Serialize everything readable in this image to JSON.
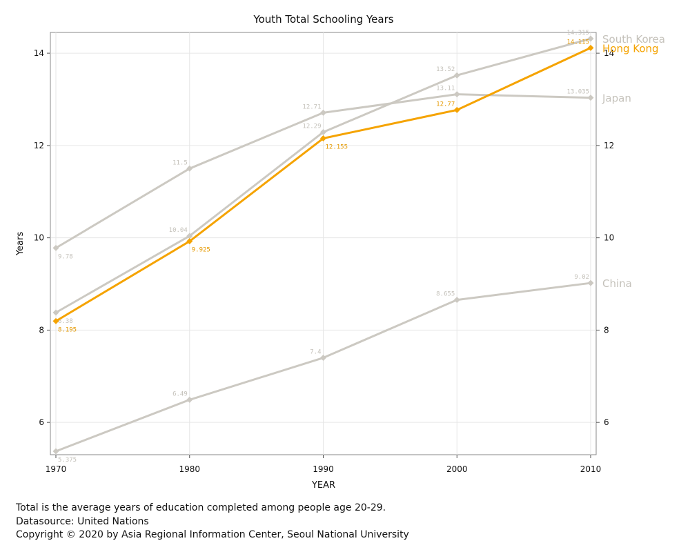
{
  "chart_data": {
    "type": "line",
    "title": "Youth Total Schooling Years",
    "xlabel": "YEAR",
    "ylabel": "Years",
    "x": [
      1970,
      1980,
      1990,
      2000,
      2010
    ],
    "xlim": [
      1970,
      2010
    ],
    "ylim": [
      5.3,
      14.45
    ],
    "y_ticks": [
      6,
      8,
      10,
      12,
      14
    ],
    "grid": true,
    "legend": "series labels at right end of lines",
    "series": [
      {
        "name": "South Korea",
        "color": "#ccc9c2",
        "values": [
          8.38,
          10.04,
          12.29,
          13.52,
          14.315
        ],
        "labels": [
          "8.38",
          "10.04",
          "12.29",
          "13.52",
          "14.315"
        ]
      },
      {
        "name": "Japan",
        "color": "#ccc9c2",
        "values": [
          9.78,
          11.5,
          12.71,
          13.11,
          13.035
        ],
        "labels": [
          "9.78",
          "11.5",
          "12.71",
          "13.11",
          "13.035"
        ]
      },
      {
        "name": "China",
        "color": "#ccc9c2",
        "values": [
          5.375,
          6.49,
          7.4,
          8.655,
          9.02
        ],
        "labels": [
          "5.375",
          "6.49",
          "7.4",
          "8.655",
          "9.02"
        ]
      },
      {
        "name": "Hong Kong",
        "color": "#f5a300",
        "highlight": true,
        "values": [
          8.195,
          9.925,
          12.155,
          12.77,
          14.115
        ],
        "labels": [
          "8.195",
          "9.925",
          "12.155",
          "12.77",
          "14.115"
        ]
      }
    ]
  },
  "footnotes": {
    "line1": "Total is the average years of education completed among people age 20-29.",
    "line2": "Datasource: United Nations",
    "line3": "Copyright © 2020 by Asia Regional Information Center, Seoul National University"
  }
}
